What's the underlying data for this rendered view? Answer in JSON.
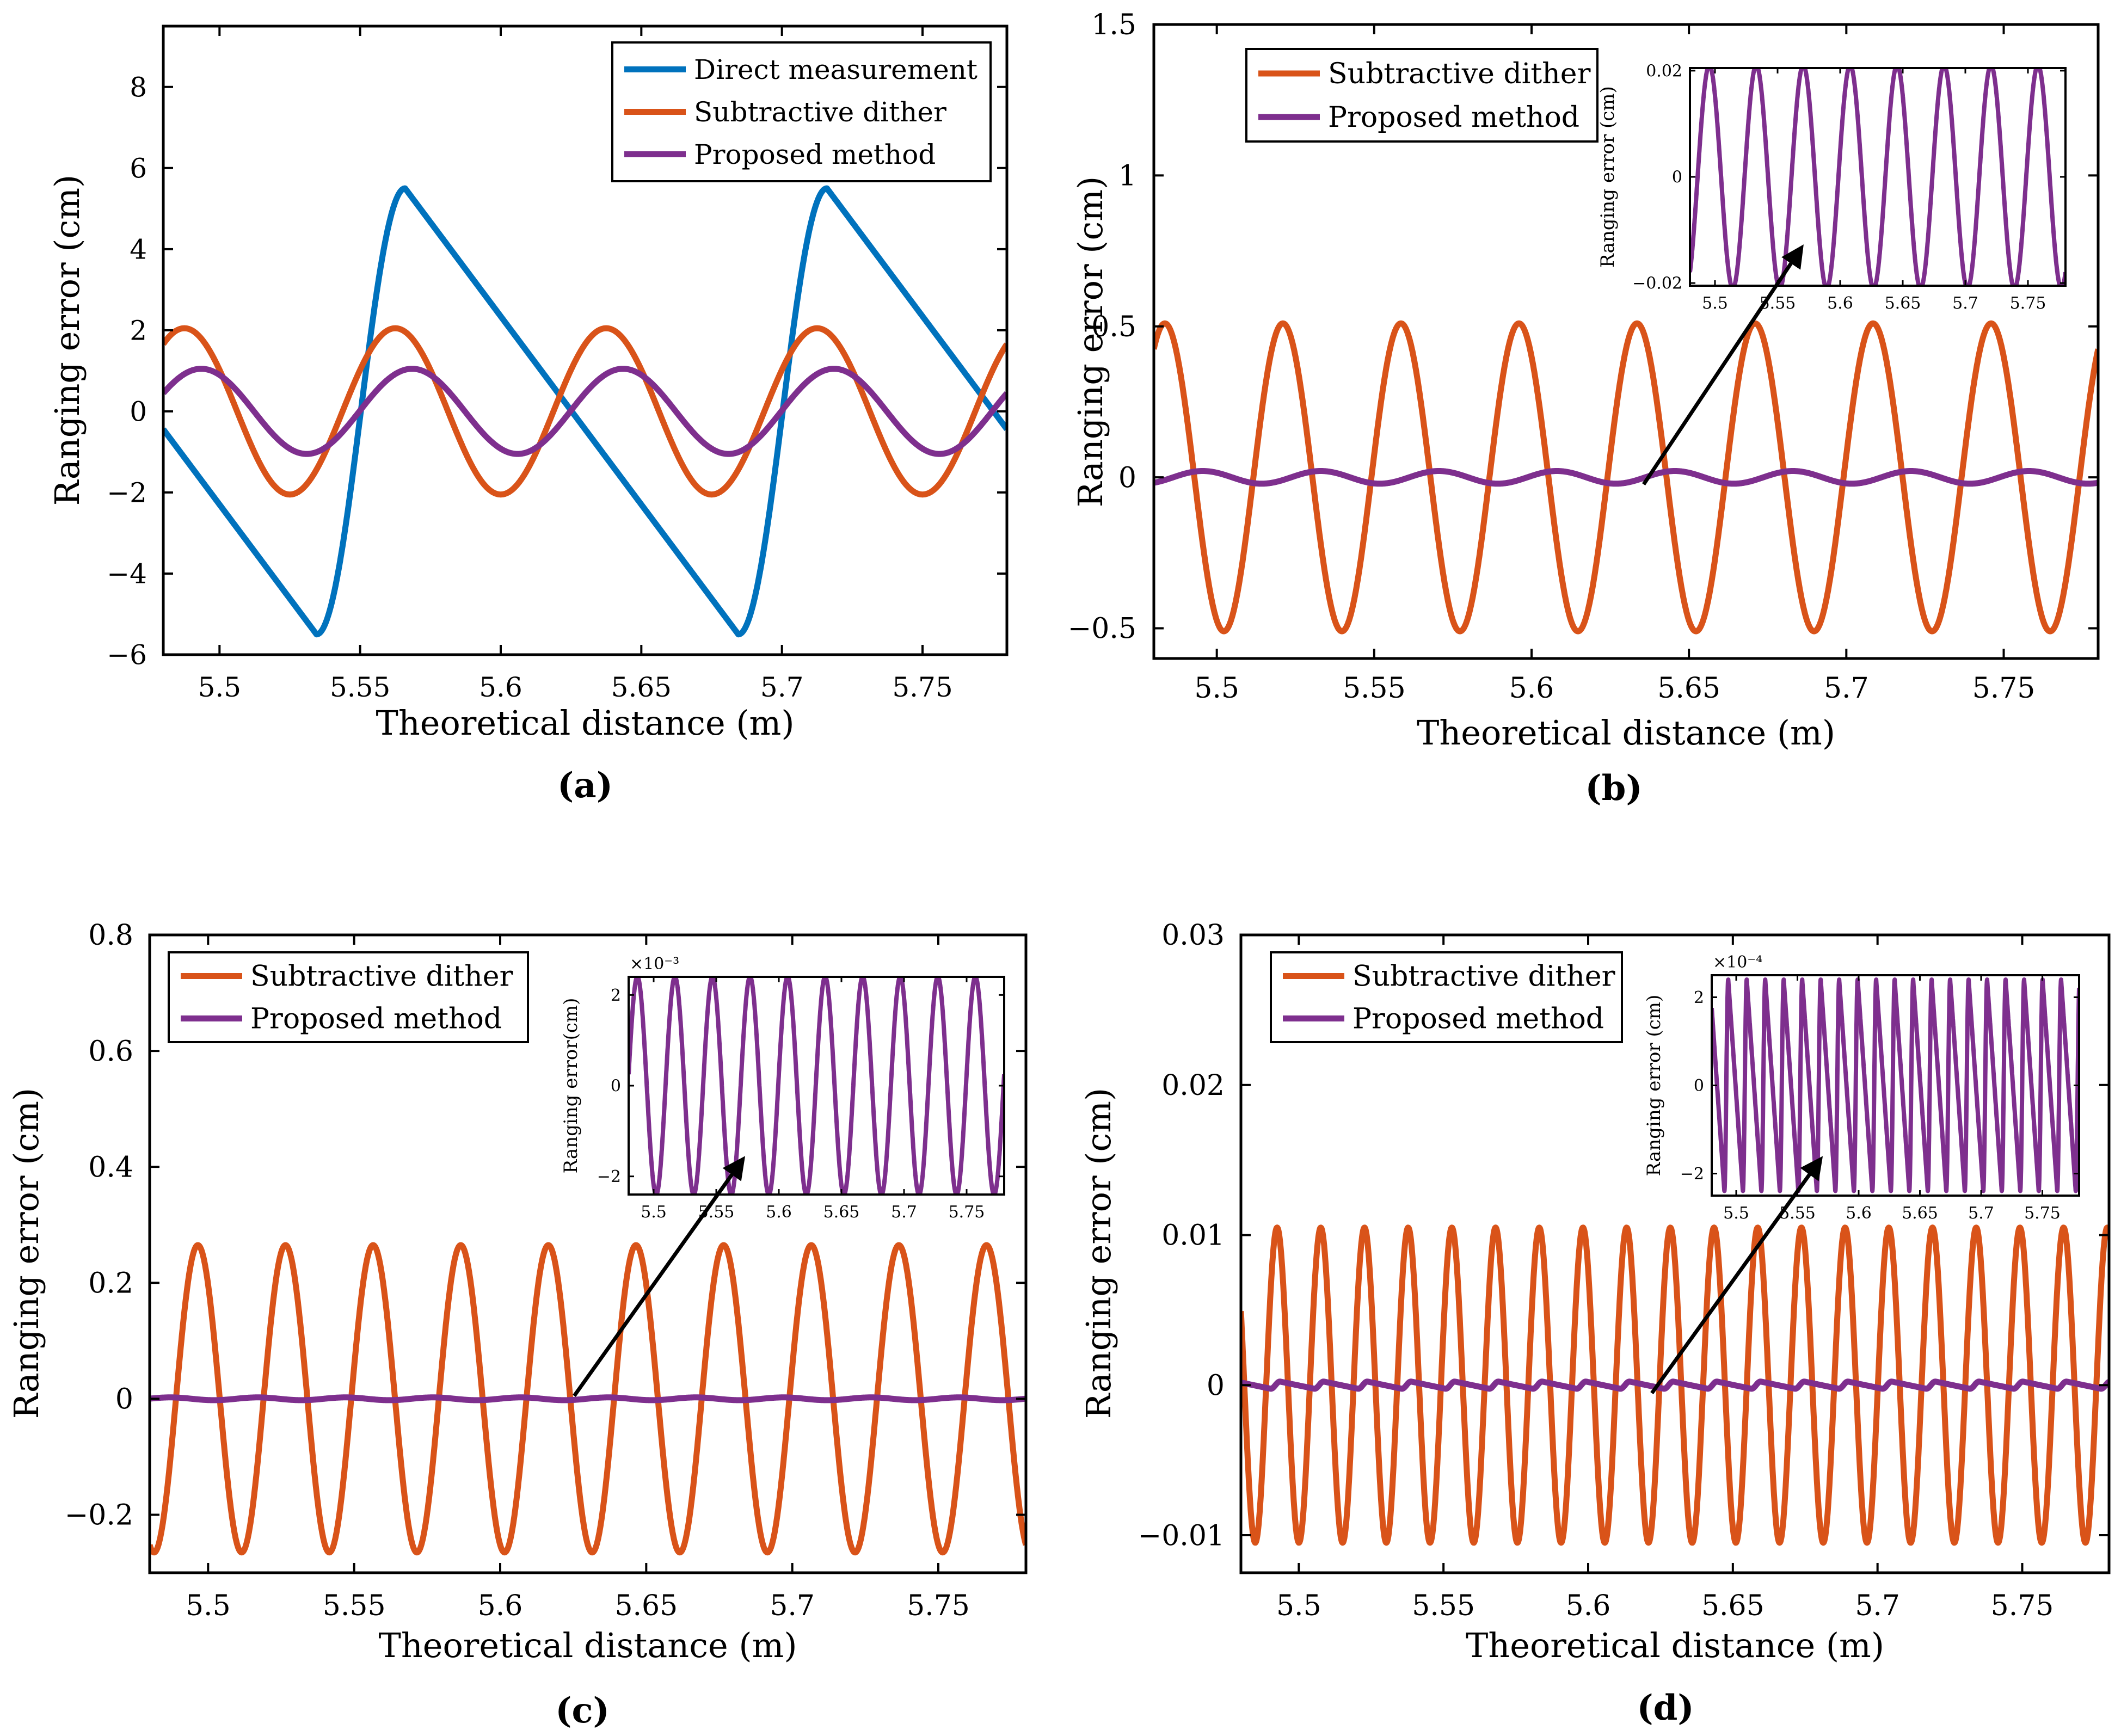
{
  "chart_data": [
    {
      "type": "line",
      "panel_label": "(a)",
      "xlabel": "Theoretical distance (m)",
      "ylabel": "Ranging error (cm)",
      "xlim": [
        5.48,
        5.78
      ],
      "ylim": [
        -6,
        9.5
      ],
      "xticks": [
        5.5,
        5.55,
        5.6,
        5.65,
        5.7,
        5.75
      ],
      "xtick_labels": [
        "5.5",
        "5.55",
        "5.6",
        "5.65",
        "5.7",
        "5.75"
      ],
      "yticks": [
        -6,
        -4,
        -2,
        0,
        2,
        4,
        6,
        8
      ],
      "ytick_labels": [
        "−6",
        "−4",
        "−2",
        "0",
        "2",
        "4",
        "6",
        "8"
      ],
      "legend": [
        "Direct measurement",
        "Subtractive dither",
        "Proposed method"
      ],
      "series": [
        {
          "name": "Direct measurement",
          "color": "#0072bd",
          "shape": "sawtooth",
          "amplitude": 5.5,
          "period": 0.15,
          "x_peak": 5.566
        },
        {
          "name": "Subtractive dither",
          "color": "#d95319",
          "shape": "sine",
          "amplitude": 2.05,
          "period": 0.075,
          "x_peak": 5.4875
        },
        {
          "name": "Proposed method",
          "color": "#7e2f8e",
          "shape": "sine",
          "amplitude": 1.05,
          "period": 0.075,
          "x_peak": 5.4935
        }
      ]
    },
    {
      "type": "line",
      "panel_label": "(b)",
      "xlabel": "Theoretical distance (m)",
      "ylabel": "Ranging error (cm)",
      "xlim": [
        5.48,
        5.78
      ],
      "ylim": [
        -0.6,
        1.5
      ],
      "xticks": [
        5.5,
        5.55,
        5.6,
        5.65,
        5.7,
        5.75
      ],
      "xtick_labels": [
        "5.5",
        "5.55",
        "5.6",
        "5.65",
        "5.7",
        "5.75"
      ],
      "yticks": [
        -0.5,
        0,
        0.5,
        1,
        1.5
      ],
      "ytick_labels": [
        "−0.5",
        "0",
        "0.5",
        "1",
        "1.5"
      ],
      "legend": [
        "Subtractive dither",
        "Proposed method"
      ],
      "series": [
        {
          "name": "Subtractive dither",
          "color": "#d95319",
          "shape": "sine",
          "amplitude": 0.51,
          "period": 0.0375,
          "x_peak": 5.4835
        },
        {
          "name": "Proposed method",
          "color": "#7e2f8e",
          "shape": "sine",
          "amplitude": 0.021,
          "period": 0.0375,
          "x_peak": 5.4955
        }
      ],
      "inset": {
        "ylabel": "Ranging error (cm)",
        "exponent": "",
        "xlim": [
          5.48,
          5.78
        ],
        "ylim": [
          -0.0205,
          0.0205
        ],
        "xticks": [
          5.5,
          5.55,
          5.6,
          5.65,
          5.7,
          5.75
        ],
        "xtick_labels": [
          "5.5",
          "5.55",
          "5.6",
          "5.65",
          "5.7",
          "5.75"
        ],
        "yticks": [
          -0.02,
          0,
          0.02
        ],
        "ytick_labels": [
          "−0.02",
          "0",
          "0.02"
        ],
        "series": {
          "color": "#7e2f8e",
          "shape": "sine",
          "amplitude": 0.021,
          "period": 0.0375,
          "x_peak": 5.4955
        }
      }
    },
    {
      "type": "line",
      "panel_label": "(c)",
      "xlabel": "Theoretical distance (m)",
      "ylabel": "Ranging error (cm)",
      "xlim": [
        5.48,
        5.78
      ],
      "ylim": [
        -0.3,
        0.8
      ],
      "xticks": [
        5.5,
        5.55,
        5.6,
        5.65,
        5.7,
        5.75
      ],
      "xtick_labels": [
        "5.5",
        "5.55",
        "5.6",
        "5.65",
        "5.7",
        "5.75"
      ],
      "yticks": [
        -0.2,
        0,
        0.2,
        0.4,
        0.6,
        0.8
      ],
      "ytick_labels": [
        "−0.2",
        "0",
        "0.2",
        "0.4",
        "0.6",
        "0.8"
      ],
      "legend": [
        "Subtractive dither",
        "Proposed method"
      ],
      "series": [
        {
          "name": "Subtractive dither",
          "color": "#d95319",
          "shape": "sine",
          "amplitude": 0.265,
          "period": 0.03,
          "x_peak": 5.4965
        },
        {
          "name": "Proposed method",
          "color": "#7e2f8e",
          "shape": "sine",
          "amplitude": 0.0024,
          "period": 0.03,
          "x_peak": 5.487
        }
      ],
      "inset": {
        "ylabel": "Ranging error(cm)",
        "exponent": "×10⁻³",
        "xlim": [
          5.48,
          5.78
        ],
        "ylim": [
          -2.4,
          2.4
        ],
        "xticks": [
          5.5,
          5.55,
          5.6,
          5.65,
          5.7,
          5.75
        ],
        "xtick_labels": [
          "5.5",
          "5.55",
          "5.6",
          "5.65",
          "5.7",
          "5.75"
        ],
        "yticks": [
          -2,
          0,
          2
        ],
        "ytick_labels": [
          "−2",
          "0",
          "2"
        ],
        "series": {
          "color": "#7e2f8e",
          "shape": "sine",
          "amplitude": 2.4,
          "period": 0.03,
          "x_peak": 5.487
        }
      }
    },
    {
      "type": "line",
      "panel_label": "(d)",
      "xlabel": "Theoretical distance (m)",
      "ylabel": "Ranging error (cm)",
      "xlim": [
        5.48,
        5.78
      ],
      "ylim": [
        -0.0125,
        0.03
      ],
      "xticks": [
        5.5,
        5.55,
        5.6,
        5.65,
        5.7,
        5.75
      ],
      "xtick_labels": [
        "5.5",
        "5.55",
        "5.6",
        "5.65",
        "5.7",
        "5.75"
      ],
      "yticks": [
        -0.01,
        0,
        0.01,
        0.02,
        0.03
      ],
      "ytick_labels": [
        "−0.01",
        "0",
        "0.01",
        "0.02",
        "0.03"
      ],
      "legend": [
        "Subtractive dither",
        "Proposed method"
      ],
      "series": [
        {
          "name": "Subtractive dither",
          "color": "#d95319",
          "shape": "sine",
          "amplitude": 0.0105,
          "period": 0.0151,
          "x_peak": 5.4925
        },
        {
          "name": "Proposed method",
          "color": "#7e2f8e",
          "shape": "sawtooth",
          "amplitude": 0.00024,
          "period": 0.0151,
          "x_peak": 5.4935
        }
      ],
      "inset": {
        "ylabel": "Ranging error (cm)",
        "exponent": "×10⁻⁴",
        "xlim": [
          5.48,
          5.78
        ],
        "ylim": [
          -2.5,
          2.5
        ],
        "xticks": [
          5.5,
          5.55,
          5.6,
          5.65,
          5.7,
          5.75
        ],
        "xtick_labels": [
          "5.5",
          "5.55",
          "5.6",
          "5.65",
          "5.7",
          "5.75"
        ],
        "yticks": [
          -2,
          0,
          2
        ],
        "ytick_labels": [
          "−2",
          "0",
          "2"
        ],
        "series": {
          "color": "#7e2f8e",
          "shape": "sawtooth",
          "amplitude": 2.4,
          "period": 0.0151,
          "x_peak": 5.4935
        }
      }
    }
  ]
}
